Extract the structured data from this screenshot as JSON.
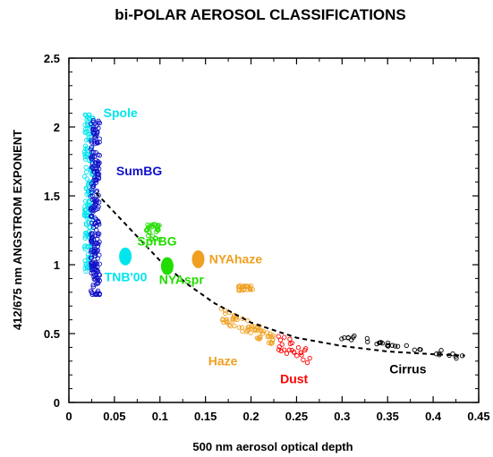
{
  "chart_data": {
    "type": "scatter",
    "title": "bi-POLAR AEROSOL CLASSIFICATIONS",
    "xlabel": "500 nm aerosol optical depth",
    "ylabel": "412/675 nm ANGSTROM EXPONENT",
    "xlim": [
      0,
      0.45
    ],
    "ylim": [
      0,
      2.5
    ],
    "x_ticks": [
      "0",
      "0.05",
      "0.1",
      "0.15",
      "0.2",
      "0.25",
      "0.3",
      "0.35",
      "0.4",
      "0.45"
    ],
    "y_ticks": [
      "0",
      "0.5",
      "1",
      "1.5",
      "2",
      "2.5"
    ],
    "grid": false,
    "series": [
      {
        "name": "Spole",
        "color": "#00e5ee",
        "marker": "open-circle",
        "x_range": [
          0.017,
          0.027
        ],
        "y_range": [
          0.95,
          2.1
        ]
      },
      {
        "name": "SumBG",
        "color": "#1010c8",
        "marker": "open-circle",
        "x_range": [
          0.024,
          0.034
        ],
        "y_range": [
          0.78,
          2.05
        ]
      },
      {
        "name": "SprBG",
        "color": "#22dd00",
        "marker": "open-circle",
        "x_range": [
          0.085,
          0.1
        ],
        "y_range": [
          1.18,
          1.3
        ]
      },
      {
        "name": "Haze",
        "color": "#f0a020",
        "marker": "open-circle",
        "x_range": [
          0.165,
          0.225
        ],
        "y_range": [
          0.45,
          0.85
        ]
      },
      {
        "name": "Dust",
        "color": "#ff0000",
        "marker": "open-circle",
        "x_range": [
          0.23,
          0.265
        ],
        "y_range": [
          0.28,
          0.5
        ]
      },
      {
        "name": "Cirrus",
        "color": "#000000",
        "marker": "open-circle",
        "x_range": [
          0.29,
          0.435
        ],
        "y_range": [
          0.32,
          0.5
        ]
      }
    ],
    "large_markers": [
      {
        "name": "TNB'00",
        "color": "#00e5ee",
        "x": 0.062,
        "y": 1.06
      },
      {
        "name": "NYAspr",
        "color": "#22dd00",
        "x": 0.108,
        "y": 0.99
      },
      {
        "name": "NYAhaze",
        "color": "#f0a020",
        "x": 0.142,
        "y": 1.04
      }
    ],
    "fit_curve": {
      "style": "dashed",
      "color": "#000000",
      "points": [
        [
          0.03,
          1.52
        ],
        [
          0.05,
          1.38
        ],
        [
          0.08,
          1.17
        ],
        [
          0.1,
          1.03
        ],
        [
          0.13,
          0.86
        ],
        [
          0.16,
          0.72
        ],
        [
          0.2,
          0.58
        ],
        [
          0.25,
          0.47
        ],
        [
          0.3,
          0.41
        ],
        [
          0.35,
          0.37
        ],
        [
          0.4,
          0.35
        ],
        [
          0.435,
          0.34
        ]
      ]
    },
    "annotations": [
      {
        "text": "Spole",
        "color": "#00e5ee"
      },
      {
        "text": "SumBG",
        "color": "#1010c8"
      },
      {
        "text": "SprBG",
        "color": "#22dd00"
      },
      {
        "text": "TNB'00",
        "color": "#00e5ee"
      },
      {
        "text": "NYAspr",
        "color": "#22dd00"
      },
      {
        "text": "NYAhaze",
        "color": "#f0a020"
      },
      {
        "text": "Haze",
        "color": "#f0a020"
      },
      {
        "text": "Dust",
        "color": "#ff0000"
      },
      {
        "text": "Cirrus",
        "color": "#000000"
      }
    ]
  }
}
